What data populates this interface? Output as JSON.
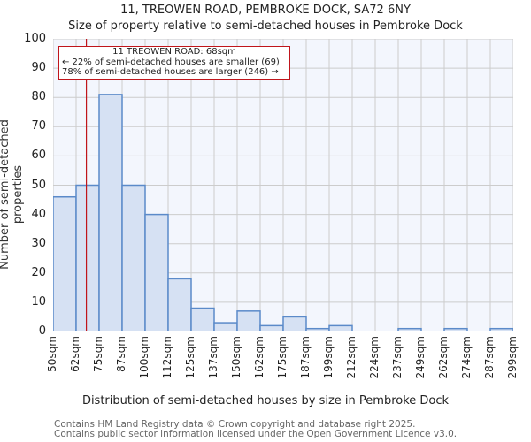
{
  "header": {
    "title": "11, TREOWEN ROAD, PEMBROKE DOCK, SA72 6NY",
    "subtitle": "Size of property relative to semi-detached houses in Pembroke Dock"
  },
  "annotation": {
    "line1": "11 TREOWEN ROAD: 68sqm",
    "line2": "← 22% of semi-detached houses are smaller (69)",
    "line3": "78% of semi-detached houses are larger (246) →"
  },
  "footer": {
    "line1": "Contains HM Land Registry data © Crown copyright and database right 2025.",
    "line2": "Contains public sector information licensed under the Open Government Licence v3.0."
  },
  "colors": {
    "bar_fill": "#d6e1f3",
    "bar_stroke": "#5b8ac9",
    "marker": "#c0151b",
    "plot_bg": "#f3f6fd",
    "grid": "#cccccc"
  },
  "chart_data": {
    "type": "bar",
    "title": "11, TREOWEN ROAD, PEMBROKE DOCK, SA72 6NY",
    "subtitle": "Size of property relative to semi-detached houses in Pembroke Dock",
    "xlabel": "Distribution of semi-detached houses by size in Pembroke Dock",
    "ylabel": "Number of semi-detached properties",
    "categories": [
      "50sqm",
      "62sqm",
      "75sqm",
      "87sqm",
      "100sqm",
      "112sqm",
      "125sqm",
      "137sqm",
      "150sqm",
      "162sqm",
      "175sqm",
      "187sqm",
      "199sqm",
      "212sqm",
      "224sqm",
      "237sqm",
      "249sqm",
      "262sqm",
      "274sqm",
      "287sqm",
      "299sqm"
    ],
    "values": [
      46,
      50,
      81,
      50,
      40,
      18,
      8,
      3,
      7,
      2,
      5,
      1,
      2,
      0,
      0,
      1,
      0,
      1,
      0,
      1
    ],
    "ylim": [
      0,
      100
    ],
    "yticks": [
      0,
      10,
      20,
      30,
      40,
      50,
      60,
      70,
      80,
      90,
      100
    ],
    "grid": true,
    "marker": {
      "x": 68,
      "label": "11 TREOWEN ROAD: 68sqm"
    }
  }
}
